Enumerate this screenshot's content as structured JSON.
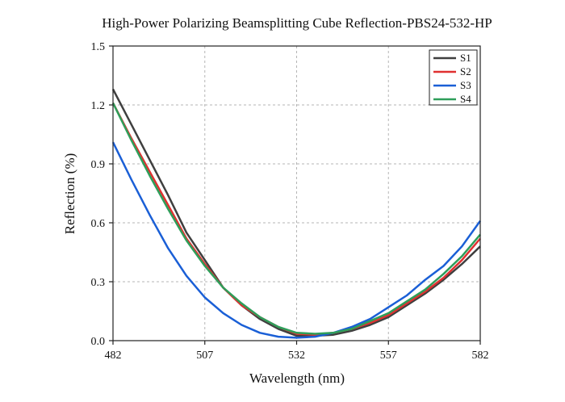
{
  "chart_data": {
    "type": "line",
    "title": "High-Power Polarizing Beamsplitting Cube Reflection-PBS24-532-HP",
    "xlabel": "Wavelength (nm)",
    "ylabel": "Reflection (%)",
    "xlim": [
      482,
      582
    ],
    "ylim": [
      0,
      1.5
    ],
    "xticks": [
      482,
      507,
      532,
      557,
      582
    ],
    "yticks": [
      0.0,
      0.3,
      0.6,
      0.9,
      1.2,
      1.5
    ],
    "ytick_labels": [
      "0.0",
      "0.3",
      "0.6",
      "0.9",
      "1.2",
      "1.5"
    ],
    "grid": true,
    "legend_position": "top-right",
    "x": [
      482,
      487,
      492,
      497,
      502,
      507,
      512,
      517,
      522,
      527,
      532,
      537,
      542,
      547,
      552,
      557,
      562,
      567,
      572,
      577,
      582
    ],
    "series": [
      {
        "name": "S1",
        "color": "#3f3f3f",
        "values": [
          1.28,
          1.1,
          0.92,
          0.74,
          0.55,
          0.41,
          0.27,
          0.18,
          0.11,
          0.06,
          0.025,
          0.025,
          0.03,
          0.05,
          0.08,
          0.12,
          0.18,
          0.24,
          0.31,
          0.39,
          0.48
        ]
      },
      {
        "name": "S2",
        "color": "#e03030",
        "values": [
          1.21,
          1.03,
          0.86,
          0.69,
          0.52,
          0.39,
          0.27,
          0.18,
          0.12,
          0.07,
          0.035,
          0.03,
          0.04,
          0.06,
          0.09,
          0.13,
          0.19,
          0.25,
          0.32,
          0.41,
          0.52
        ]
      },
      {
        "name": "S3",
        "color": "#1a5fd6",
        "values": [
          1.01,
          0.82,
          0.64,
          0.47,
          0.33,
          0.22,
          0.14,
          0.08,
          0.04,
          0.02,
          0.015,
          0.02,
          0.04,
          0.07,
          0.11,
          0.17,
          0.23,
          0.31,
          0.38,
          0.48,
          0.61
        ]
      },
      {
        "name": "S4",
        "color": "#2e9e5a",
        "values": [
          1.21,
          1.02,
          0.84,
          0.67,
          0.51,
          0.38,
          0.27,
          0.19,
          0.12,
          0.07,
          0.04,
          0.035,
          0.04,
          0.06,
          0.1,
          0.14,
          0.2,
          0.26,
          0.34,
          0.43,
          0.54
        ]
      }
    ]
  }
}
